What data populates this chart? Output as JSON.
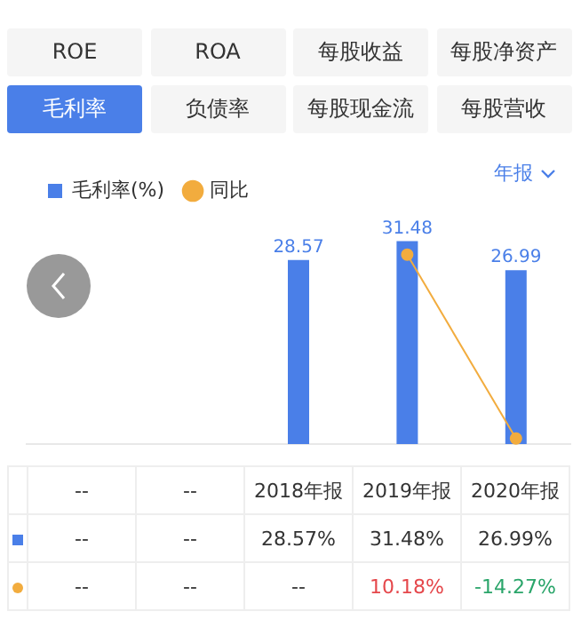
{
  "chart_data": {
    "type": "bar",
    "categories": [
      "--",
      "--",
      "2018年报",
      "2019年报",
      "2020年报"
    ],
    "series": [
      {
        "name": "毛利率(%)",
        "color": "#4a7fe8",
        "values": [
          null,
          null,
          28.57,
          31.48,
          26.99
        ]
      },
      {
        "name": "同比",
        "type": "line",
        "axis": "y2",
        "color": "#f2ac3e",
        "values": [
          null,
          null,
          null,
          10.18,
          -14.27
        ],
        "value_labels": [
          "--",
          "--",
          "--",
          "10.18%",
          "-14.27%"
        ]
      }
    ],
    "annotations": [
      "ROE",
      "ROA",
      "每股收益",
      "每股净资产",
      "毛利率",
      "负债率",
      "每股现金流",
      "每股营收",
      "年报",
      "--",
      "--",
      "28.57%",
      "31.48%",
      "26.99%"
    ],
    "data_labels": true,
    "legend": "top left",
    "tick_labels": false,
    "grid": false,
    "marker": "circle"
  }
}
